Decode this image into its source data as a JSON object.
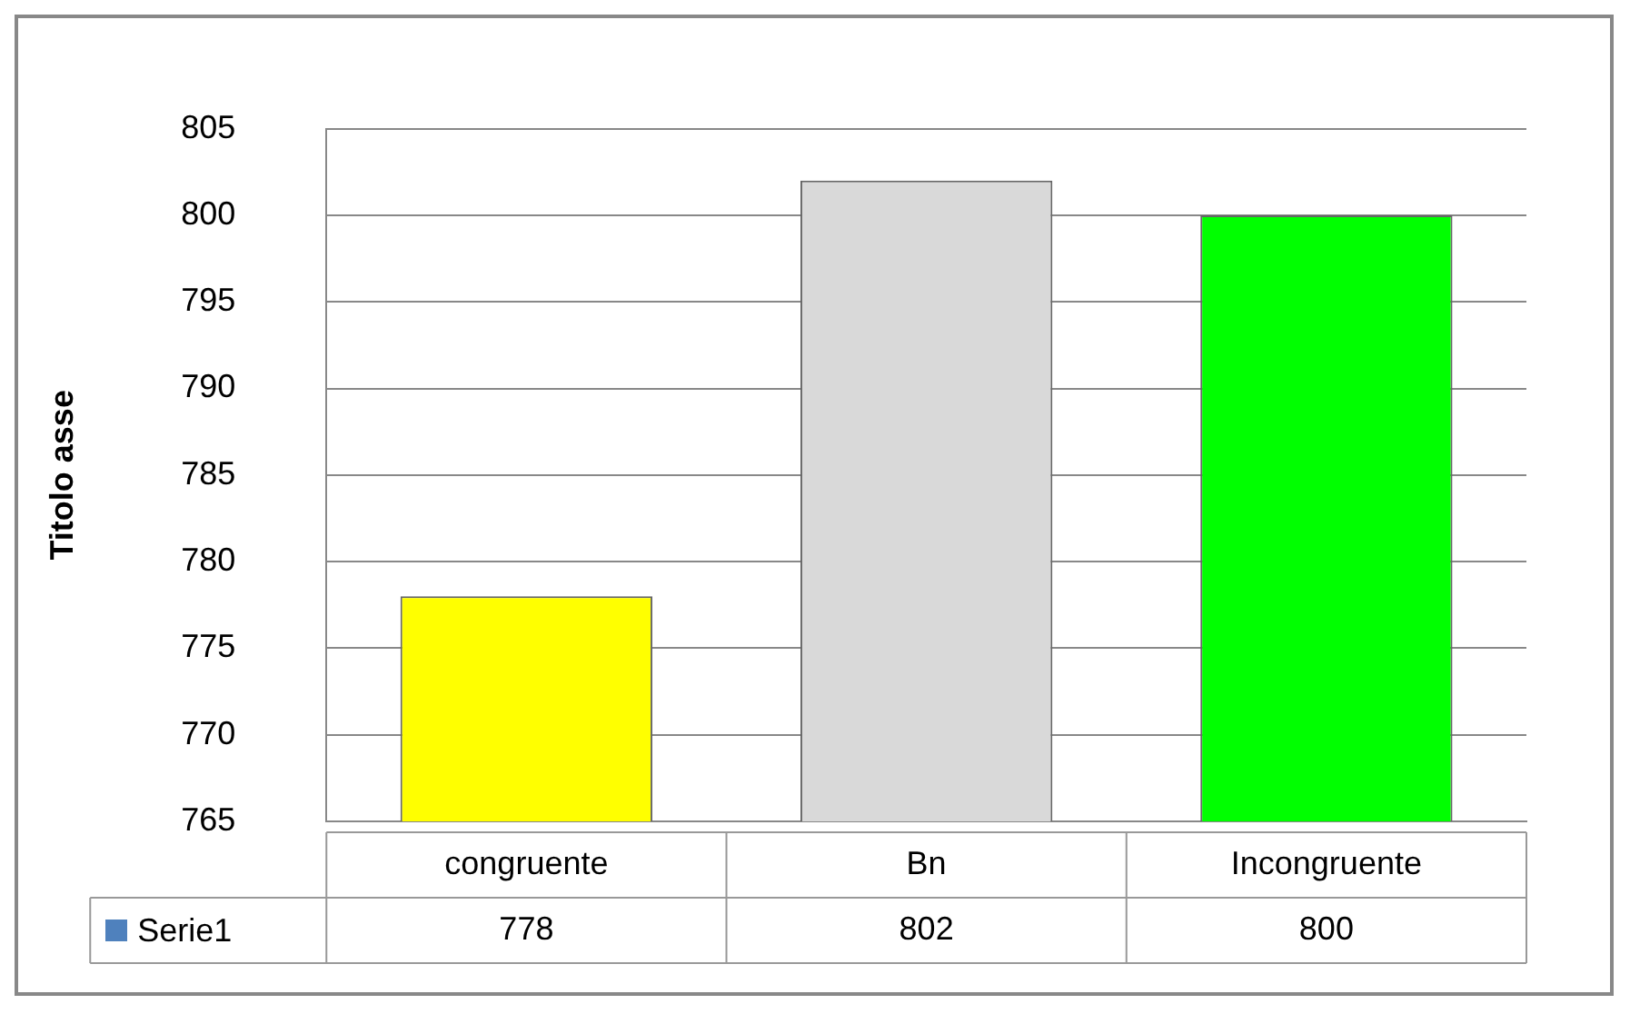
{
  "chart_data": {
    "type": "bar",
    "ylabel": "Titolo asse",
    "categories": [
      "congruente",
      "Bn",
      "Incongruente"
    ],
    "series": [
      {
        "name": "Serie1",
        "color": "#4f81bd",
        "colors": [
          "#ffff00",
          "#d9d9d9",
          "#00ff00"
        ],
        "values": [
          778,
          802,
          800
        ]
      }
    ],
    "ylim": [
      765,
      805
    ],
    "yticks": [
      765,
      770,
      775,
      780,
      785,
      790,
      795,
      800,
      805
    ],
    "grid": "y",
    "legend": "bottom",
    "data_labels": true
  }
}
